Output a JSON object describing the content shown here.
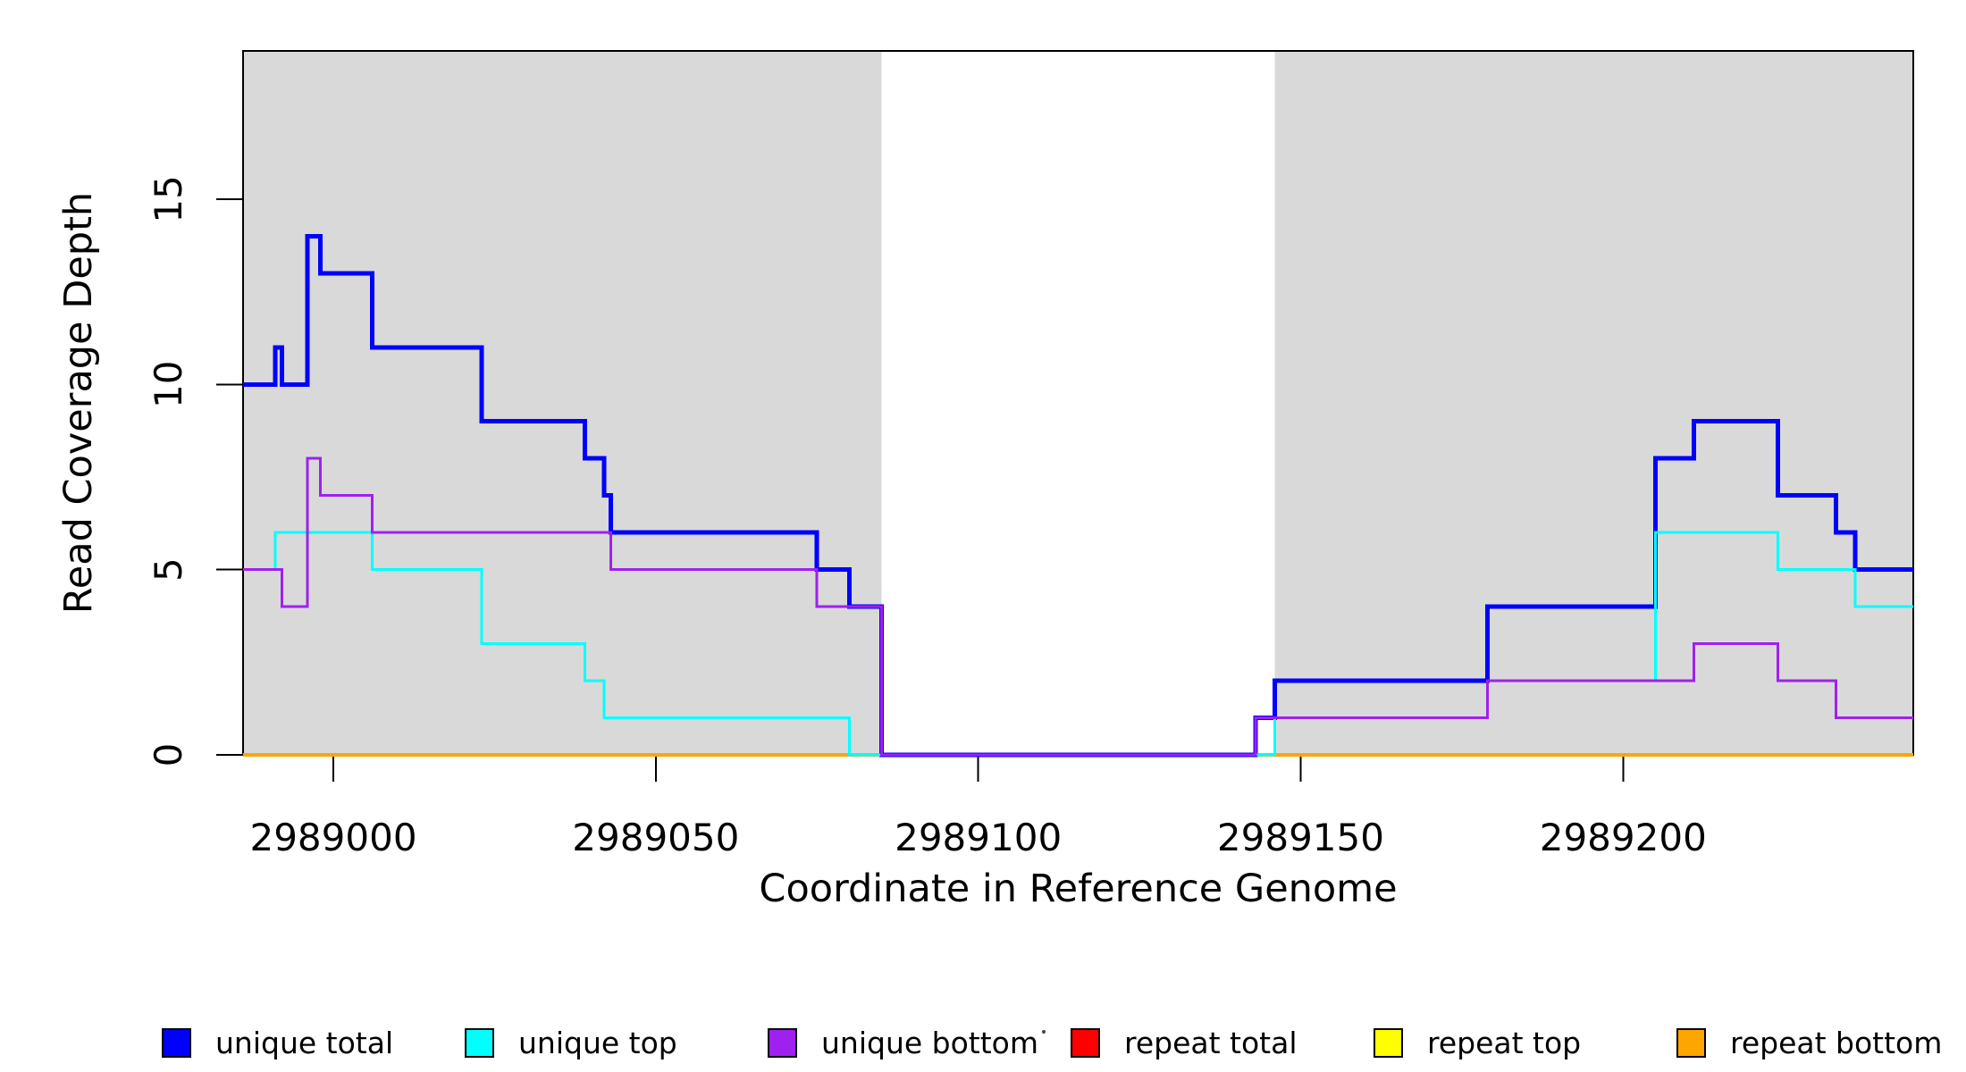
{
  "chart_data": {
    "type": "line",
    "subtype": "step-post",
    "title": "",
    "xlabel": "Coordinate in Reference Genome",
    "ylabel": "Read Coverage Depth",
    "xlim": [
      2988986,
      2989245
    ],
    "ylim": [
      0,
      19
    ],
    "x_ticks": [
      2989000,
      2989050,
      2989100,
      2989150,
      2989200
    ],
    "y_ticks": [
      0,
      5,
      10,
      15
    ],
    "grid": false,
    "legend_position": "bottom",
    "background_color": "#ffffff",
    "shaded_region_color": "#d9d9d9",
    "shaded_regions": [
      {
        "name": "left-alignment-region",
        "x0": 2988986,
        "x1": 2989085
      },
      {
        "name": "right-alignment-region",
        "x0": 2989146,
        "x1": 2989245
      }
    ],
    "steps_note": "each series is a step function: entries are [x_start, depth]; value holds until next entry x or xlim max; series listed in draw order (later drawn on top)",
    "series": [
      {
        "name": "repeat total",
        "color": "#ff0000",
        "linewidth": 4,
        "steps": [
          [
            2988986,
            0
          ]
        ]
      },
      {
        "name": "repeat top",
        "color": "#ffff00",
        "linewidth": 4,
        "steps": [
          [
            2988986,
            0
          ]
        ]
      },
      {
        "name": "repeat bottom",
        "color": "#ffa500",
        "linewidth": 4,
        "steps": [
          [
            2988986,
            0
          ]
        ]
      },
      {
        "name": "unique total",
        "color": "#0000ff",
        "linewidth": 5,
        "steps": [
          [
            2988986,
            10
          ],
          [
            2988991,
            11
          ],
          [
            2988992,
            10
          ],
          [
            2988996,
            14
          ],
          [
            2988998,
            13
          ],
          [
            2989006,
            11
          ],
          [
            2989023,
            9
          ],
          [
            2989039,
            8
          ],
          [
            2989042,
            7
          ],
          [
            2989043,
            6
          ],
          [
            2989075,
            5
          ],
          [
            2989080,
            4
          ],
          [
            2989085,
            0
          ],
          [
            2989143,
            1
          ],
          [
            2989146,
            2
          ],
          [
            2989179,
            4
          ],
          [
            2989205,
            8
          ],
          [
            2989211,
            9
          ],
          [
            2989224,
            7
          ],
          [
            2989233,
            6
          ],
          [
            2989236,
            5
          ]
        ]
      },
      {
        "name": "unique top",
        "color": "#00ffff",
        "linewidth": 3,
        "steps": [
          [
            2988986,
            5
          ],
          [
            2988991,
            6
          ],
          [
            2989006,
            5
          ],
          [
            2989023,
            3
          ],
          [
            2989039,
            2
          ],
          [
            2989042,
            1
          ],
          [
            2989080,
            0
          ],
          [
            2989146,
            1
          ],
          [
            2989179,
            2
          ],
          [
            2989205,
            6
          ],
          [
            2989224,
            5
          ],
          [
            2989236,
            4
          ]
        ]
      },
      {
        "name": "unique bottom",
        "color": "#a020f0",
        "linewidth": 3,
        "steps": [
          [
            2988986,
            5
          ],
          [
            2988992,
            4
          ],
          [
            2988996,
            8
          ],
          [
            2988998,
            7
          ],
          [
            2989006,
            6
          ],
          [
            2989043,
            5
          ],
          [
            2989075,
            4
          ],
          [
            2989085,
            0
          ],
          [
            2989143,
            1
          ],
          [
            2989179,
            2
          ],
          [
            2989211,
            3
          ],
          [
            2989224,
            2
          ],
          [
            2989233,
            1
          ]
        ]
      }
    ]
  },
  "legend": {
    "items": [
      {
        "label": "unique total",
        "color": "#0000ff"
      },
      {
        "label": "unique top",
        "color": "#00ffff"
      },
      {
        "label": "unique bottom",
        "color": "#a020f0"
      },
      {
        "label": "repeat total",
        "color": "#ff0000"
      },
      {
        "label": "repeat top",
        "color": "#ffff00"
      },
      {
        "label": "repeat bottom",
        "color": "#ffa500"
      }
    ]
  }
}
